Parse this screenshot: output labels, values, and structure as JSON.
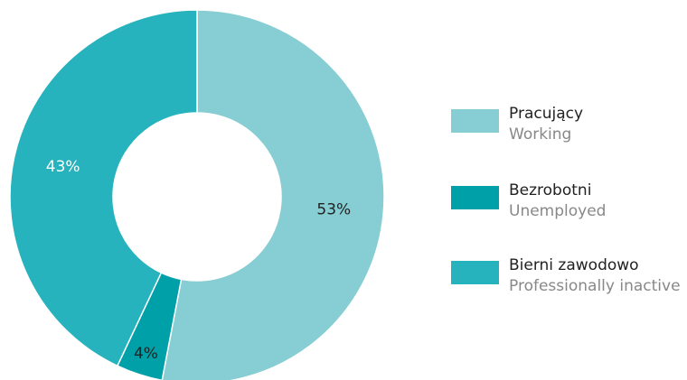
{
  "chart_data": {
    "type": "donut",
    "categories": [
      "Pracujący",
      "Bezrobotni",
      "Bierni zawodowo"
    ],
    "categories_en": [
      "Working",
      "Unemployed",
      "Professionally inactive"
    ],
    "values": [
      53,
      4,
      43
    ],
    "value_labels": [
      "53%",
      "4%",
      "43%"
    ],
    "colors": [
      "#86ced3",
      "#00a0a8",
      "#26b3bd"
    ],
    "legend": "right"
  }
}
